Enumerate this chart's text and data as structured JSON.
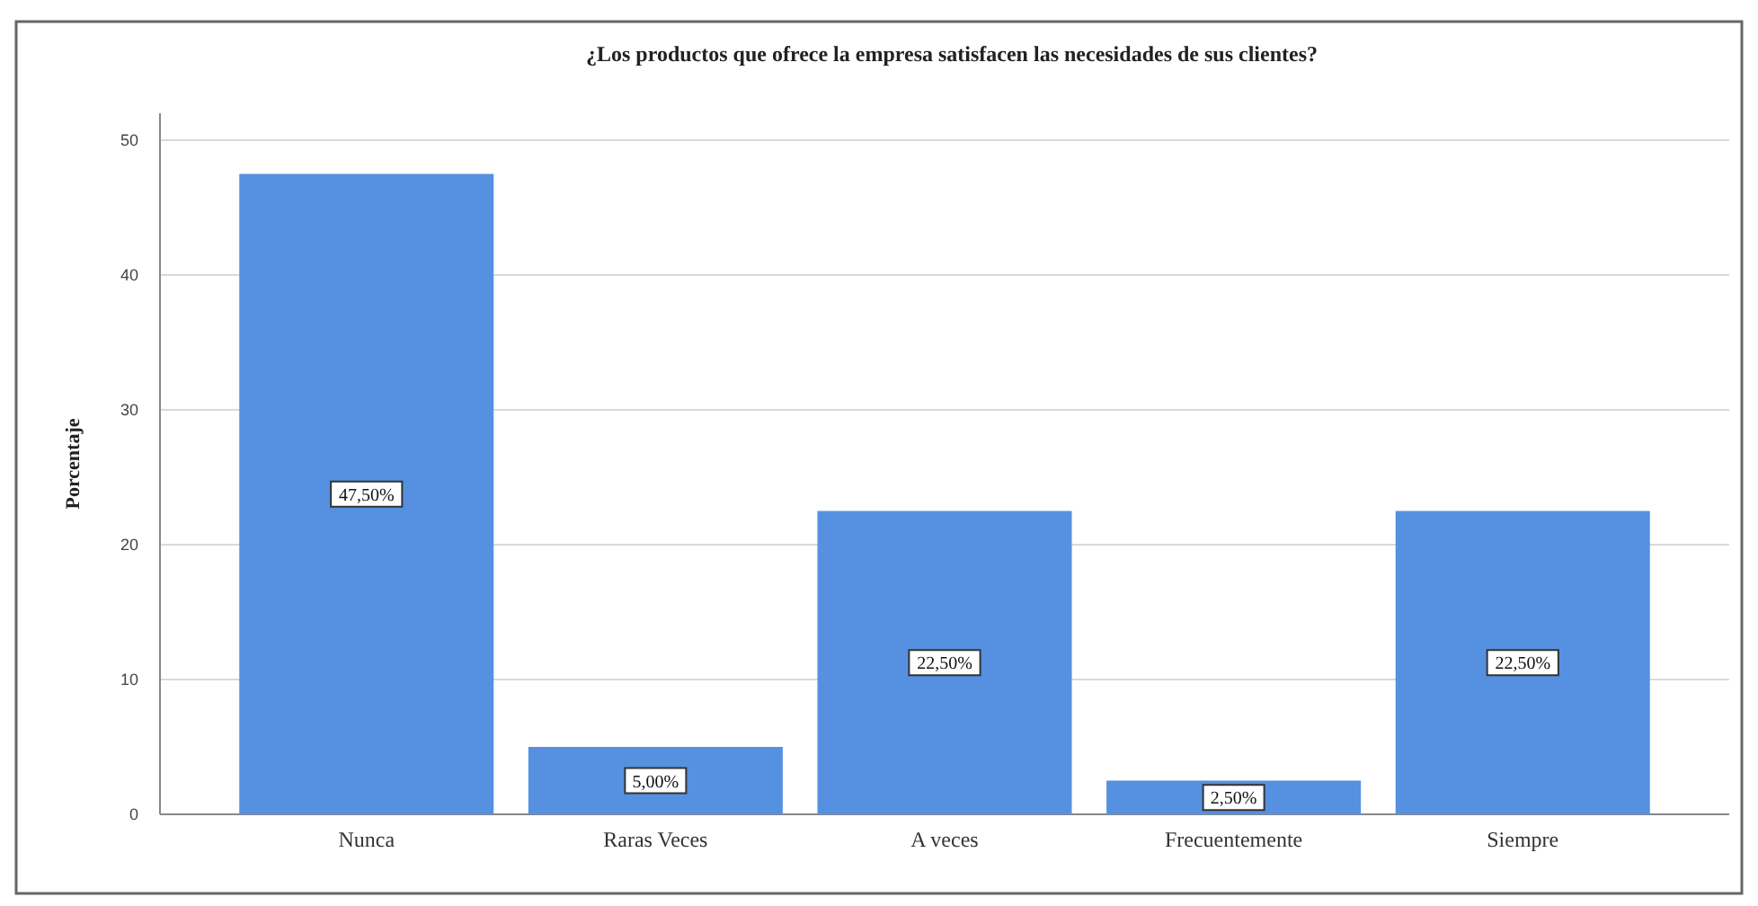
{
  "chart_data": {
    "type": "bar",
    "title": "¿Los productos que ofrece la empresa satisfacen las necesidades de sus clientes?",
    "ylabel": "Porcentaje",
    "categories": [
      "Nunca",
      "Raras Veces",
      "A veces",
      "Frecuentemente",
      "Siempre"
    ],
    "values": [
      47.5,
      5,
      22.5,
      2.5,
      22.5
    ],
    "value_labels": [
      "47,50%",
      "5,00%",
      "22,50%",
      "2,50%",
      "22,50%"
    ],
    "color": "#5591e0",
    "ylim": [
      0,
      52
    ],
    "yticks": [
      0,
      10,
      20,
      30,
      40,
      50
    ],
    "grid": "y"
  }
}
